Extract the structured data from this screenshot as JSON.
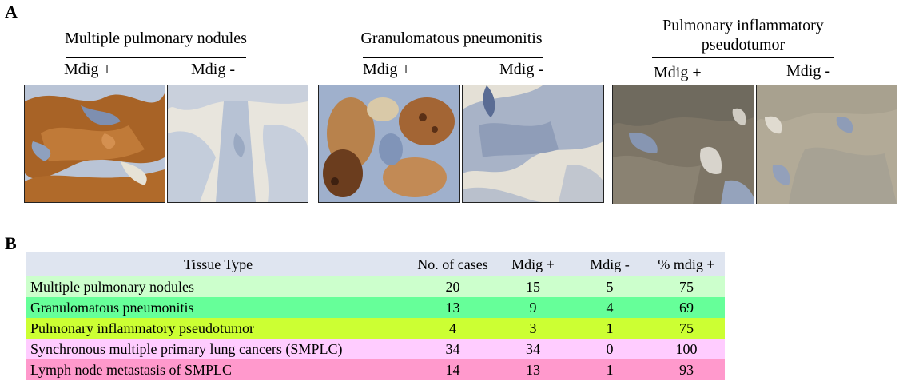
{
  "panel_a_label": "A",
  "panel_b_label": "B",
  "groups": [
    {
      "title_lines": [
        "Multiple pulmonary nodules"
      ],
      "plus_label": "Mdig +",
      "minus_label": "Mdig -"
    },
    {
      "title_lines": [
        "Granulomatous pneumonitis"
      ],
      "plus_label": "Mdig +",
      "minus_label": "Mdig -"
    },
    {
      "title_lines": [
        "Pulmonary inflammatory",
        "pseudotumor"
      ],
      "plus_label": "Mdig +",
      "minus_label": "Mdig -"
    }
  ],
  "table": {
    "headers": [
      "Tissue Type",
      "No. of cases",
      "Mdig +",
      "Mdig -",
      "% mdig +"
    ],
    "rows": [
      {
        "cells": [
          "Multiple pulmonary nodules",
          "20",
          "15",
          "5",
          "75"
        ],
        "color": "#ccffcc"
      },
      {
        "cells": [
          "Granulomatous pneumonitis",
          "13",
          "9",
          "4",
          "69"
        ],
        "color": "#66ff99"
      },
      {
        "cells": [
          "Pulmonary inflammatory pseudotumor",
          "4",
          "3",
          "1",
          "75"
        ],
        "color": "#ccff33"
      },
      {
        "cells": [
          "Synchronous multiple primary lung cancers (SMPLC)",
          "34",
          "34",
          "0",
          "100"
        ],
        "color": "#ffccff"
      },
      {
        "cells": [
          "Lymph node metastasis of SMPLC",
          "14",
          "13",
          "1",
          "93"
        ],
        "color": "#ff99cc"
      }
    ]
  },
  "colors": {
    "header_bg": "#dfe5f0",
    "stain_brown": "#a0581e",
    "tissue_blue": "#7d93b8",
    "background_tissue": "#e9e6df"
  }
}
